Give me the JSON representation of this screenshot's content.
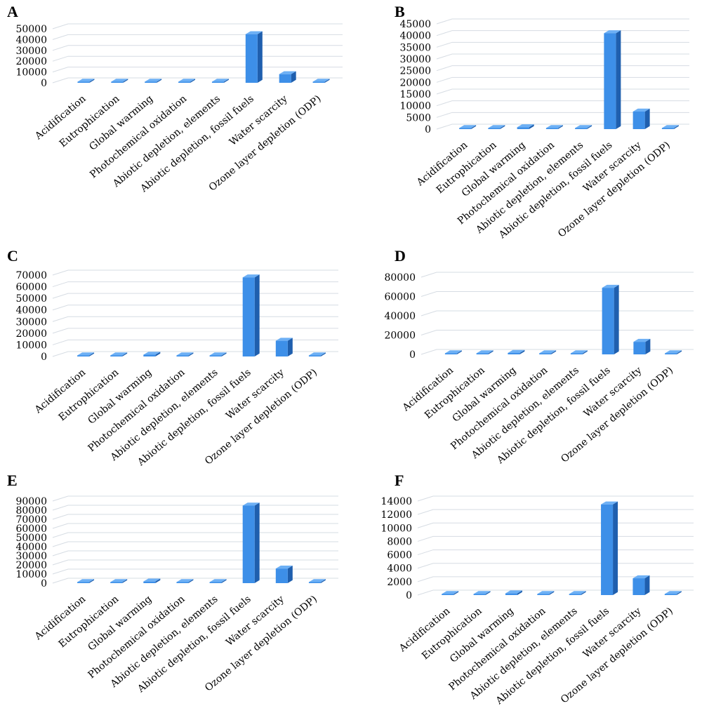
{
  "categories": [
    "Acidification",
    "Eutrophication",
    "Global warming",
    "Photochemical oxidation",
    "Abiotic depletion, elements",
    "Abiotic depletion, fossil fuels",
    "Water scarcity",
    "Ozone layer depletion (ODP)"
  ],
  "colors": {
    "bar_front": "#3d8fe8",
    "bar_side": "#1f5fae",
    "bar_top": "#6db0f5",
    "grid": "#d6dce3"
  },
  "chart_data": [
    {
      "panel": "A",
      "type": "bar",
      "categories": [
        "Acidification",
        "Eutrophication",
        "Global warming",
        "Photochemical oxidation",
        "Abiotic depletion, elements",
        "Abiotic depletion, fossil fuels",
        "Water scarcity",
        "Ozone layer depletion (ODP)"
      ],
      "values": [
        50,
        20,
        900,
        20,
        5,
        45000,
        8000,
        0.01
      ],
      "yticks": [
        "0",
        "10000",
        "20000",
        "30000",
        "40000",
        "50000"
      ],
      "ylim": [
        0,
        50000
      ],
      "grid": true
    },
    {
      "panel": "B",
      "type": "bar",
      "categories": [
        "Acidification",
        "Eutrophication",
        "Global warming",
        "Photochemical oxidation",
        "Abiotic depletion, elements",
        "Abiotic depletion, fossil fuels",
        "Water scarcity",
        "Ozone layer depletion (ODP)"
      ],
      "values": [
        50,
        20,
        800,
        20,
        5,
        41000,
        7500,
        0.01
      ],
      "yticks": [
        "0",
        "5000",
        "10000",
        "15000",
        "20000",
        "25000",
        "30000",
        "35000",
        "40000",
        "45000"
      ],
      "ylim": [
        0,
        45000
      ],
      "grid": true
    },
    {
      "panel": "C",
      "type": "bar",
      "categories": [
        "Acidification",
        "Eutrophication",
        "Global warming",
        "Photochemical oxidation",
        "Abiotic depletion, elements",
        "Abiotic depletion, fossil fuels",
        "Water scarcity",
        "Ozone layer depletion (ODP)"
      ],
      "values": [
        80,
        30,
        1500,
        30,
        5,
        68000,
        13500,
        0.01
      ],
      "yticks": [
        "0",
        "10000",
        "20000",
        "30000",
        "40000",
        "50000",
        "60000",
        "70000"
      ],
      "ylim": [
        0,
        70000
      ],
      "grid": true
    },
    {
      "panel": "D",
      "type": "bar",
      "categories": [
        "Acidification",
        "Eutrophication",
        "Global warming",
        "Photochemical oxidation",
        "Abiotic depletion, elements",
        "Abiotic depletion, fossil fuels",
        "Water scarcity",
        "Ozone layer depletion (ODP)"
      ],
      "values": [
        80,
        30,
        1500,
        30,
        5,
        69000,
        13000,
        0.01
      ],
      "yticks": [
        "0",
        "20000",
        "40000",
        "60000",
        "80000"
      ],
      "ylim": [
        0,
        80000
      ],
      "grid": true
    },
    {
      "panel": "E",
      "type": "bar",
      "categories": [
        "Acidification",
        "Eutrophication",
        "Global warming",
        "Photochemical oxidation",
        "Abiotic depletion, elements",
        "Abiotic depletion, fossil fuels",
        "Water scarcity",
        "Ozone layer depletion (ODP)"
      ],
      "values": [
        100,
        40,
        1800,
        40,
        5,
        85000,
        16000,
        0.01
      ],
      "yticks": [
        "0",
        "10000",
        "20000",
        "30000",
        "40000",
        "50000",
        "60000",
        "70000",
        "80000",
        "90000"
      ],
      "ylim": [
        0,
        90000
      ],
      "grid": true
    },
    {
      "panel": "F",
      "type": "bar",
      "categories": [
        "Acidification",
        "Eutrophication",
        "Global warming",
        "Photochemical oxidation",
        "Abiotic depletion, elements",
        "Abiotic depletion, fossil fuels",
        "Water scarcity",
        "Ozone layer depletion (ODP)"
      ],
      "values": [
        15,
        5,
        250,
        5,
        1,
        13500,
        2500,
        0.01
      ],
      "yticks": [
        "0",
        "2000",
        "4000",
        "6000",
        "8000",
        "10000",
        "12000",
        "14000"
      ],
      "ylim": [
        0,
        14000
      ],
      "grid": true
    }
  ]
}
